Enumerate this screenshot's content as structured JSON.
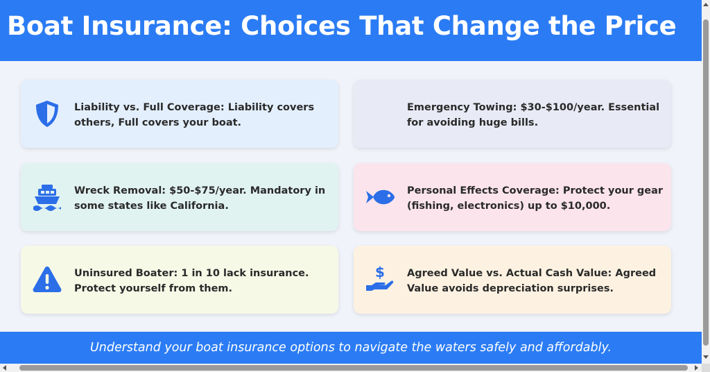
{
  "header": {
    "title": "Boat Insurance: Choices That Change the Price"
  },
  "cards": [
    {
      "icon": "shield-icon",
      "text": "Liability vs. Full Coverage: Liability covers others, Full covers your boat.",
      "bg": "#e3effd"
    },
    {
      "icon": "",
      "text": "Emergency Towing: $30-$100/year. Essential for avoiding huge bills.",
      "bg": "#e8eaf5"
    },
    {
      "icon": "ship-icon",
      "text": "Wreck Removal: $50-$75/year. Mandatory in some states like California.",
      "bg": "#e1f3f1"
    },
    {
      "icon": "fish-icon",
      "text": "Personal Effects Coverage: Protect your gear (fishing, electronics) up to $10,000.",
      "bg": "#fbe4ec"
    },
    {
      "icon": "warning-icon",
      "text": "Uninsured Boater: 1 in 10 lack insurance. Protect yourself from them.",
      "bg": "#f7f9e7"
    },
    {
      "icon": "dollar-hand-icon",
      "text": "Agreed Value vs. Actual Cash Value: Agreed Value avoids depreciation surprises.",
      "bg": "#fdf2e2"
    }
  ],
  "footer": {
    "text": "Understand your boat insurance options to navigate the waters safely and affordably."
  },
  "colors": {
    "accent": "#2b7cf4",
    "icon": "#2b6ee8"
  }
}
